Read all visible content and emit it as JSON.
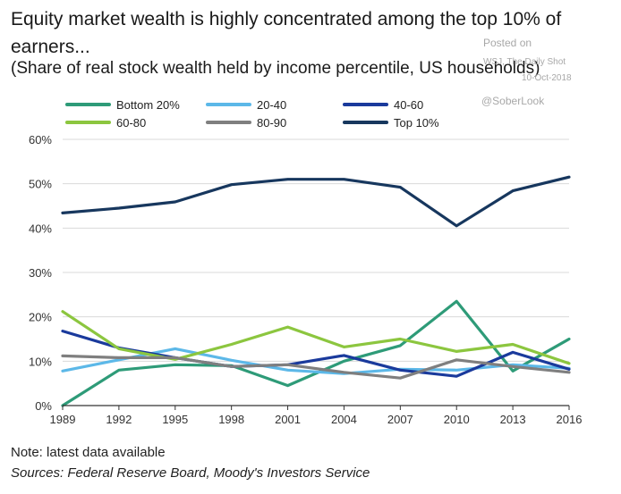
{
  "header": {
    "title": "Equity market wealth is highly concentrated among the top 10% of earners...",
    "subtitle": "(Share of real stock wealth held by income percentile, US households)"
  },
  "watermark": {
    "posted_on": "Posted on",
    "source": "WSJ, The Daily Shot",
    "date": "10-Oct-2018",
    "handle": "@SoberLook"
  },
  "footer": {
    "note": "Note: latest data available",
    "sources": "Sources: Federal Reserve Board, Moody's Investors Service"
  },
  "chart_data": {
    "type": "line",
    "title": "Equity market wealth is highly concentrated among the top 10% of earners...",
    "subtitle": "(Share of real stock wealth held by income percentile, US households)",
    "xlabel": "",
    "ylabel": "",
    "x": [
      1989,
      1992,
      1995,
      1998,
      2001,
      2004,
      2007,
      2010,
      2013,
      2016
    ],
    "ylim": [
      0,
      60
    ],
    "yticks": [
      0,
      10,
      20,
      30,
      40,
      50,
      60
    ],
    "ytick_labels": [
      "0%",
      "10%",
      "20%",
      "30%",
      "40%",
      "50%",
      "60%"
    ],
    "grid": "horizontal",
    "legend": "top",
    "series": [
      {
        "name": "Bottom 20%",
        "color": "#2e9b78",
        "values": [
          0,
          8,
          9.2,
          9,
          4.5,
          10,
          13.5,
          23.5,
          7.8,
          15
        ]
      },
      {
        "name": "20-40",
        "color": "#5cb8e8",
        "values": [
          7.8,
          10.3,
          12.8,
          10.2,
          8,
          7.2,
          8.2,
          8,
          9.2,
          8.4
        ]
      },
      {
        "name": "40-60",
        "color": "#1a3a9c",
        "values": [
          16.8,
          13,
          10.8,
          8.8,
          9.2,
          11.3,
          8,
          6.6,
          12,
          8.2
        ]
      },
      {
        "name": "60-80",
        "color": "#8cc63f",
        "values": [
          21.2,
          12.8,
          10.4,
          13.8,
          17.7,
          13.2,
          15,
          12.2,
          13.8,
          9.5
        ]
      },
      {
        "name": "80-90",
        "color": "#7f7f7f",
        "values": [
          11.2,
          10.8,
          10.8,
          8.8,
          9.2,
          7.5,
          6.2,
          10.3,
          8.8,
          7.5
        ]
      },
      {
        "name": "Top 10%",
        "color": "#17375e",
        "values": [
          43.4,
          44.5,
          45.9,
          49.8,
          51,
          51,
          49.2,
          40.5,
          48.4,
          51.5
        ]
      }
    ]
  }
}
